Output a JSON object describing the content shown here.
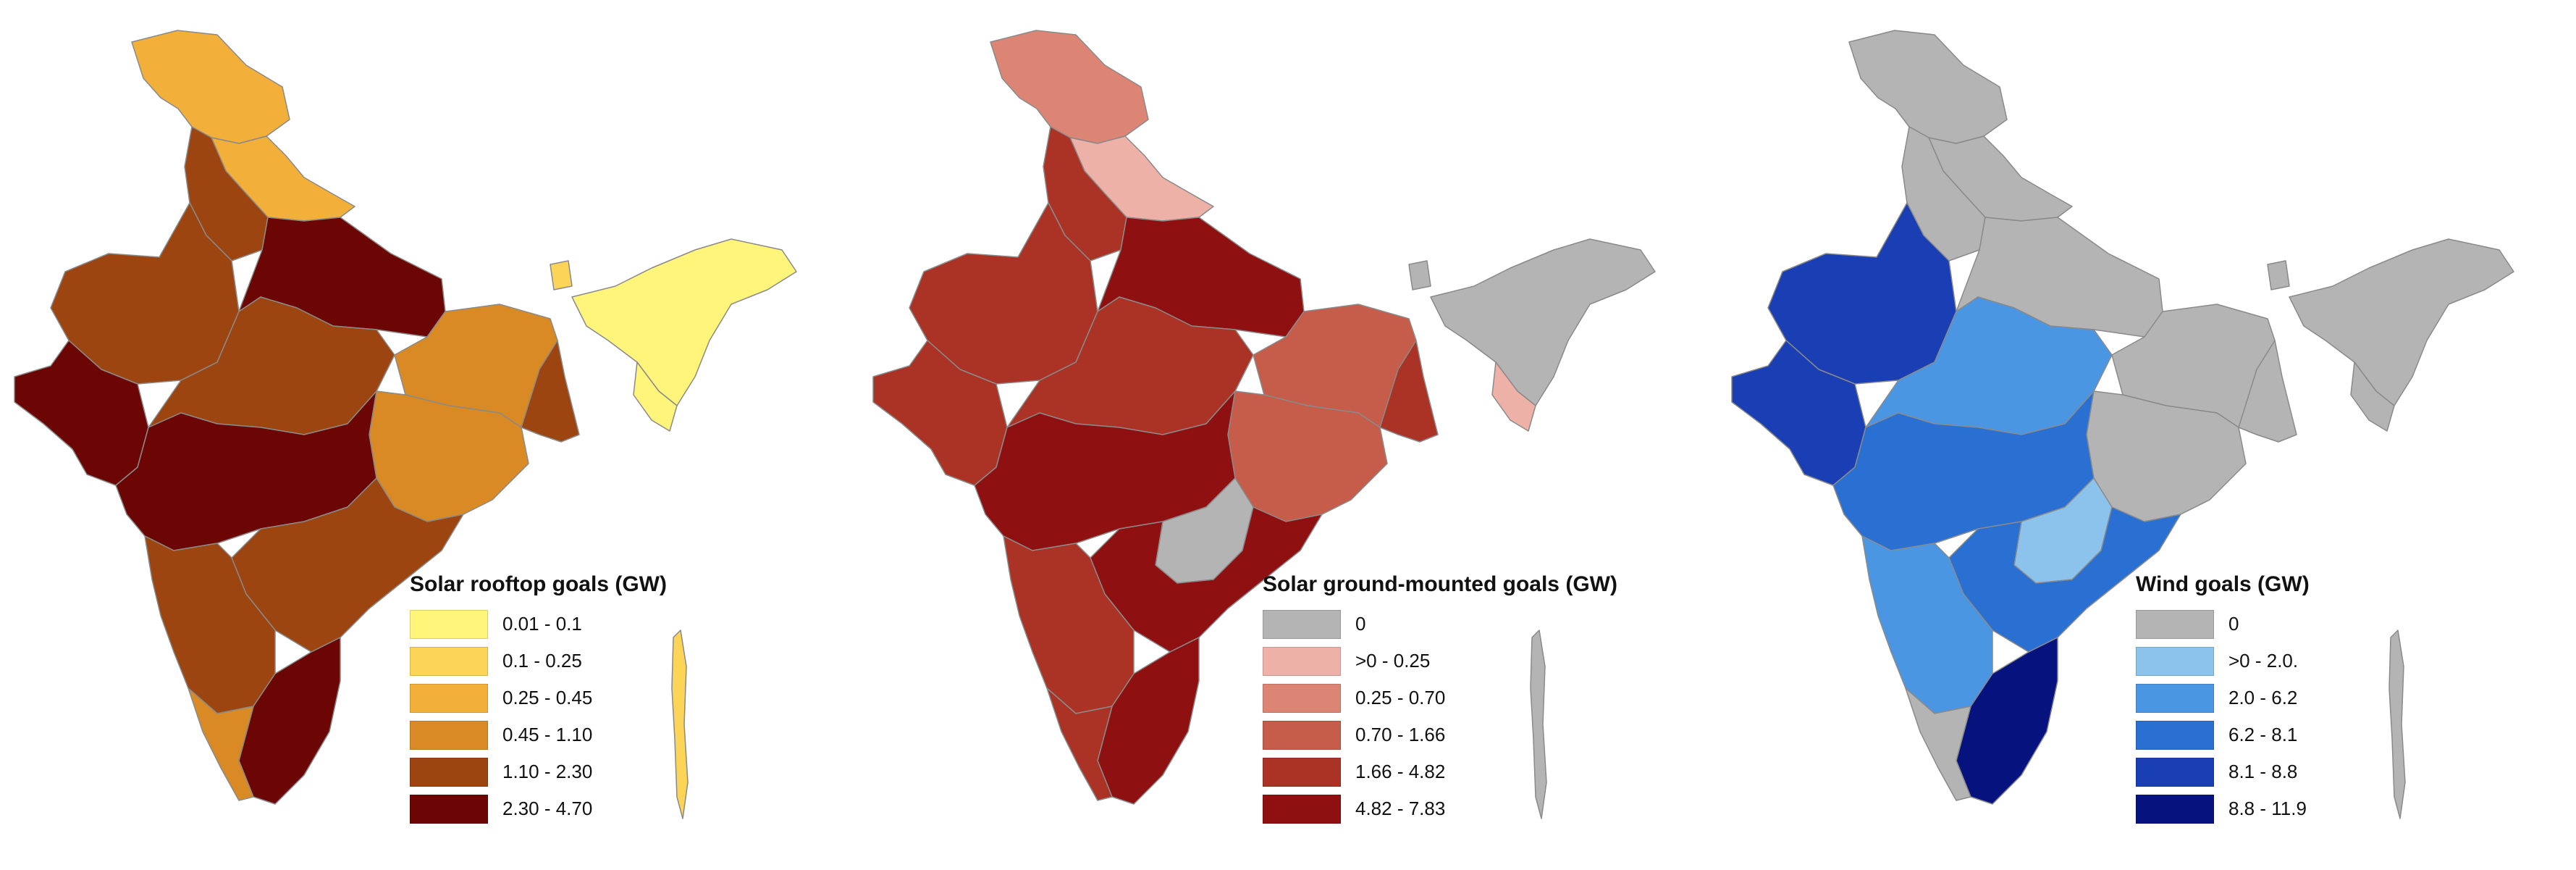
{
  "maps": [
    {
      "legend_title": "Solar rooftop goals (GW)",
      "classes": [
        {
          "label": "0.01 - 0.1",
          "color": "#fff57a"
        },
        {
          "label": "0.1 - 0.25",
          "color": "#fcd458"
        },
        {
          "label": "0.25 - 0.45",
          "color": "#f2b03a"
        },
        {
          "label": "0.45 - 1.10",
          "color": "#d98a24"
        },
        {
          "label": "1.10 - 2.30",
          "color": "#9c4510"
        },
        {
          "label": "2.30 - 4.70",
          "color": "#6b0605"
        }
      ]
    },
    {
      "legend_title": "Solar ground-mounted goals (GW)",
      "classes": [
        {
          "label": "0",
          "color": "#b4b4b4"
        },
        {
          "label": ">0 - 0.25",
          "color": "#eeb1a8"
        },
        {
          "label": "0.25 - 0.70",
          "color": "#dd8574"
        },
        {
          "label": "0.70 - 1.66",
          "color": "#c65c4a"
        },
        {
          "label": "1.66 - 4.82",
          "color": "#aa3325"
        },
        {
          "label": "4.82 - 7.83",
          "color": "#8f1011"
        }
      ]
    },
    {
      "legend_title": "Wind goals (GW)",
      "classes": [
        {
          "label": "0",
          "color": "#b4b4b4"
        },
        {
          "label": ">0 - 2.0.",
          "color": "#8cc3ec"
        },
        {
          "label": "2.0 - 6.2",
          "color": "#4b96e3"
        },
        {
          "label": "6.2 - 8.1",
          "color": "#2a6fd2"
        },
        {
          "label": "8.1 - 8.8",
          "color": "#1a3fb4"
        },
        {
          "label": "8.8 - 11.9",
          "color": "#06137e"
        }
      ]
    }
  ]
}
